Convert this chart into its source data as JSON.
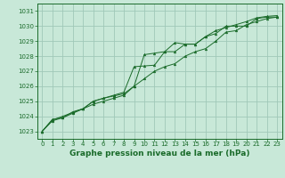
{
  "bg_color": "#c8e8d8",
  "grid_color": "#a0c8b8",
  "line_color": "#1a6b2a",
  "marker_color": "#1a6b2a",
  "xlabel": "Graphe pression niveau de la mer (hPa)",
  "xlabel_fontsize": 6.5,
  "ylim": [
    1022.5,
    1031.5
  ],
  "xlim": [
    -0.5,
    23.5
  ],
  "yticks": [
    1023,
    1024,
    1025,
    1026,
    1027,
    1028,
    1029,
    1030,
    1031
  ],
  "xticks": [
    0,
    1,
    2,
    3,
    4,
    5,
    6,
    7,
    8,
    9,
    10,
    11,
    12,
    13,
    14,
    15,
    16,
    17,
    18,
    19,
    20,
    21,
    22,
    23
  ],
  "series1": [
    1023.0,
    1023.8,
    1023.9,
    1024.3,
    1024.5,
    1024.8,
    1025.0,
    1025.2,
    1025.4,
    1026.0,
    1026.5,
    1027.0,
    1027.3,
    1027.5,
    1028.0,
    1028.3,
    1028.5,
    1029.0,
    1029.6,
    1029.7,
    1030.1,
    1030.3,
    1030.5,
    1030.6
  ],
  "series2": [
    1023.0,
    1023.7,
    1023.9,
    1024.2,
    1024.5,
    1025.0,
    1025.2,
    1025.35,
    1025.5,
    1026.0,
    1028.1,
    1028.2,
    1028.3,
    1028.3,
    1028.8,
    1028.8,
    1029.3,
    1029.5,
    1030.0,
    1030.0,
    1030.0,
    1030.5,
    1030.6,
    1030.6
  ],
  "series3": [
    1023.0,
    1023.75,
    1024.0,
    1024.25,
    1024.5,
    1025.0,
    1025.2,
    1025.4,
    1025.6,
    1027.3,
    1027.35,
    1027.4,
    1028.3,
    1028.9,
    1028.8,
    1028.8,
    1029.3,
    1029.7,
    1029.9,
    1030.1,
    1030.3,
    1030.55,
    1030.65,
    1030.7
  ]
}
